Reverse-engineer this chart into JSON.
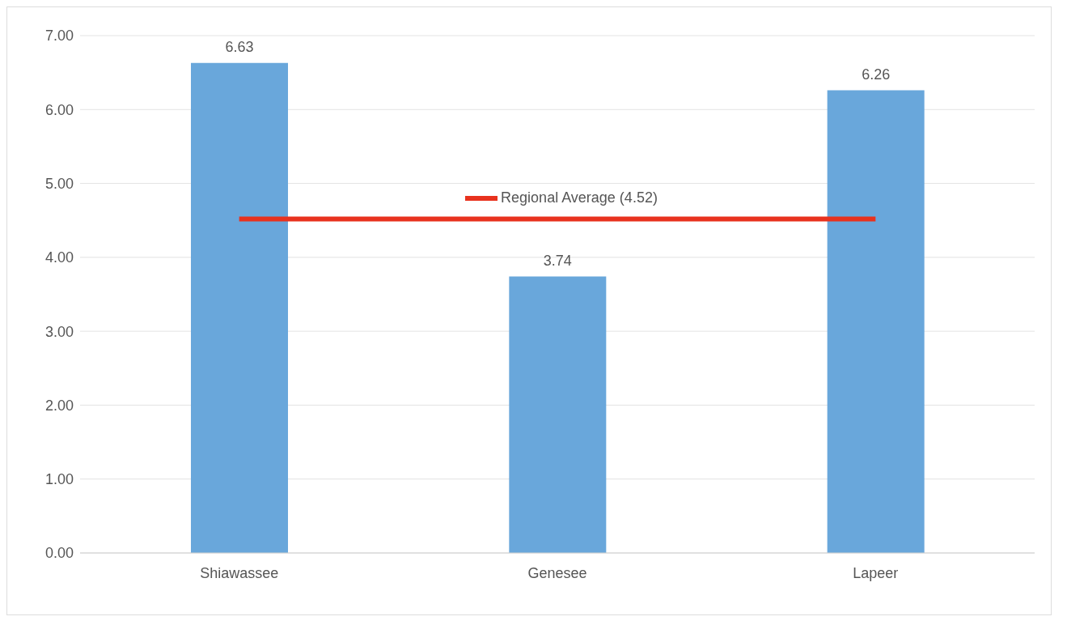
{
  "chart_data": {
    "type": "bar",
    "categories": [
      "Shiawassee",
      "Genesee",
      "Lapeer"
    ],
    "series": [
      {
        "color": "#69a7db",
        "values": [
          6.63,
          3.74,
          6.26
        ],
        "value_labels": [
          "6.63",
          "3.74",
          "6.26"
        ]
      },
      {
        "type": "line",
        "name": "Regional Average (4.52)",
        "color": "#e8321e",
        "values": [
          4.52,
          4.52,
          4.52
        ]
      }
    ],
    "ylim": [
      0,
      7
    ],
    "yticks": [
      {
        "value": 0,
        "label": "0.00"
      },
      {
        "value": 1,
        "label": "1.00"
      },
      {
        "value": 2,
        "label": "2.00"
      },
      {
        "value": 3,
        "label": "3.00"
      },
      {
        "value": 4,
        "label": "4.00"
      },
      {
        "value": 5,
        "label": "5.00"
      },
      {
        "value": 6,
        "label": "6.00"
      },
      {
        "value": 7,
        "label": "7.00"
      }
    ],
    "grid": "y",
    "legend": "top",
    "marker": "none"
  }
}
